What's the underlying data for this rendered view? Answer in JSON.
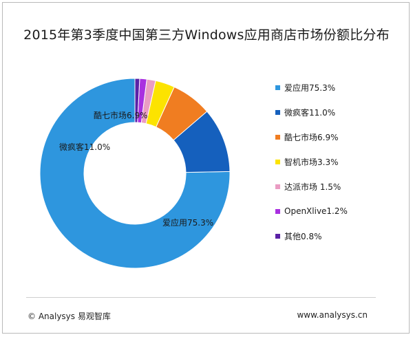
{
  "chart_data": {
    "type": "pie",
    "title": "2015年第3季度中国第三方Windows应用商店市场份额比分布",
    "donut": true,
    "unit": "%",
    "legend_position": "right",
    "slices": [
      {
        "name": "爱应用",
        "value": 75.3,
        "legend": "爱应用75.3%",
        "label": "爱应用75.3%",
        "color": "#2e96de"
      },
      {
        "name": "微疯客",
        "value": 11.0,
        "legend": "微疯客11.0%",
        "label": "微疯客11.0%",
        "color": "#1560bd"
      },
      {
        "name": "酷七市场",
        "value": 6.9,
        "legend": "酷七市场6.9%",
        "label": "酷七市场6.9%",
        "color": "#f07d21"
      },
      {
        "name": "智机市场",
        "value": 3.3,
        "legend": "智机市场3.3%",
        "label": "",
        "color": "#fce300"
      },
      {
        "name": "达派市场",
        "value": 1.5,
        "legend": "达派市场 1.5%",
        "label": "",
        "color": "#ea9cc3"
      },
      {
        "name": "OpenXlive",
        "value": 1.2,
        "legend": "OpenXlive1.2%",
        "label": "",
        "color": "#a930e0"
      },
      {
        "name": "其他",
        "value": 0.8,
        "legend": "其他0.8%",
        "label": "",
        "color": "#5a21a6"
      }
    ]
  },
  "footer": {
    "copyright": "© Analysys 易观智库",
    "url": "www.analysys.cn"
  }
}
